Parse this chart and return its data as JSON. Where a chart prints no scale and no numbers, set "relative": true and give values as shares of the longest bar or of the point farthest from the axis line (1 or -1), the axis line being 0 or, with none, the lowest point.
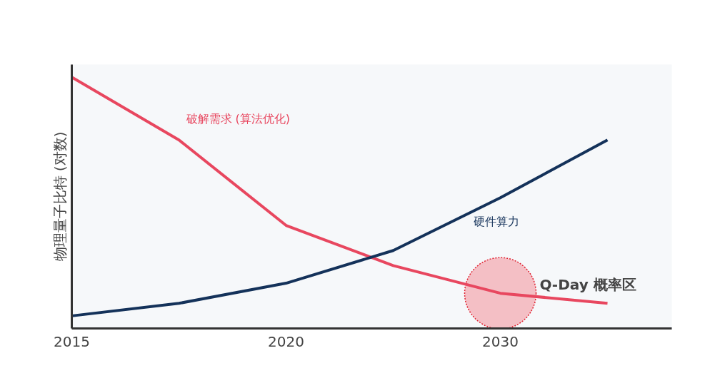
{
  "chart_data": {
    "type": "line",
    "relative": true,
    "ylabel": "物理量子比特 (对数)",
    "categories": [
      "2015",
      null,
      "2020",
      null,
      "2030",
      null
    ],
    "series": [
      {
        "name": "破解需求 (算法优化)",
        "color": "#e8475f",
        "values": [
          1.0,
          0.75,
          0.41,
          0.25,
          0.14,
          0.1
        ]
      },
      {
        "name": "硬件算力",
        "color": "#14325a",
        "values": [
          0.05,
          0.1,
          0.18,
          0.31,
          0.52,
          0.75
        ]
      },
      {
        "type": "scatter",
        "marker": "circle",
        "color": "#f4a6ae",
        "values": [
          null,
          null,
          null,
          null,
          0.14,
          null
        ]
      }
    ],
    "annotations": [
      "Q-Day 概率区"
    ],
    "grid": false,
    "marker": "none",
    "line_style": "solid"
  }
}
